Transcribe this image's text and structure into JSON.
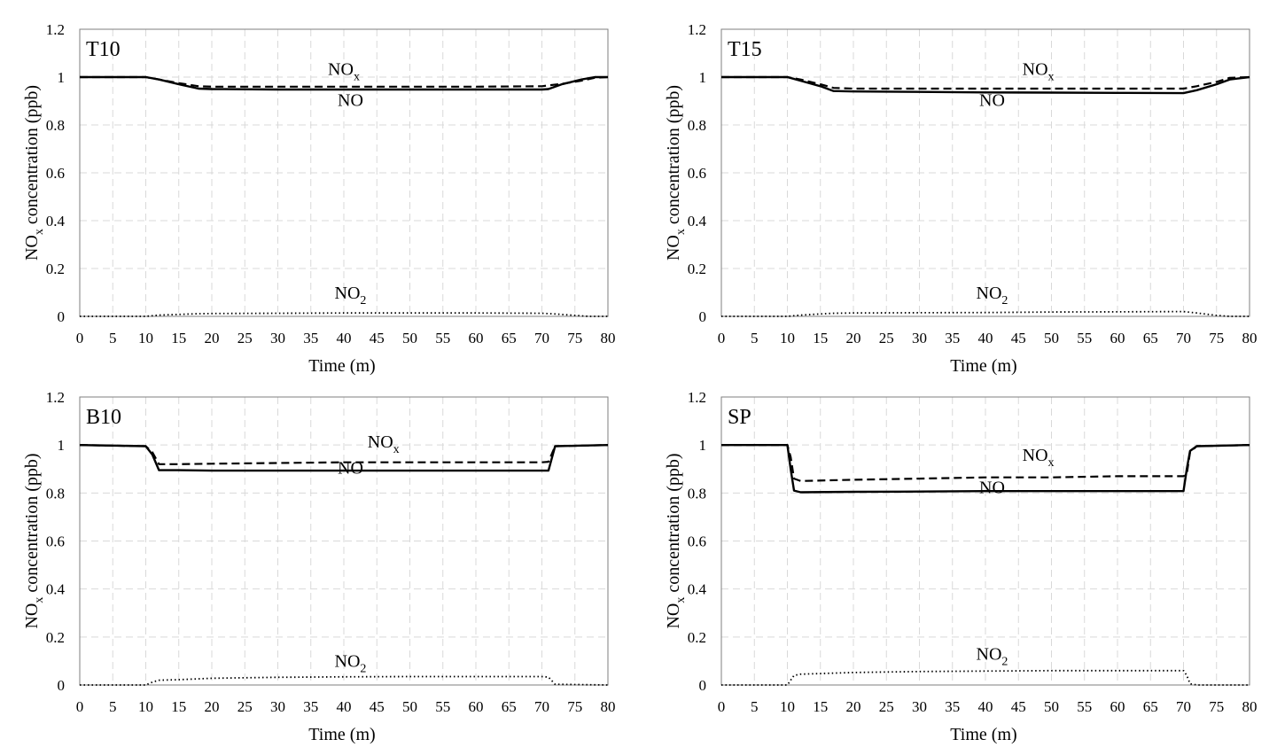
{
  "chart_data": [
    {
      "type": "line",
      "title": "T10",
      "xlabel": "Time (m)",
      "ylabel": "NOx concentration (ppb)",
      "ylabel_main": "NO",
      "ylabel_sub": "x",
      "ylabel_rest": " concentration (ppb)",
      "xlim": [
        0,
        80
      ],
      "ylim": [
        0,
        1.2
      ],
      "xticks": [
        "0",
        "5",
        "10",
        "15",
        "20",
        "25",
        "30",
        "35",
        "40",
        "45",
        "50",
        "55",
        "60",
        "65",
        "70",
        "75",
        "80"
      ],
      "yticks": [
        "0",
        "0.2",
        "0.4",
        "0.6",
        "0.8",
        "1",
        "1.2"
      ],
      "grid": true,
      "series": [
        {
          "name": "NOx",
          "style": "dashed",
          "label_main": "NO",
          "label_sub": "x",
          "label_pos": [
            40,
            1.01
          ],
          "x": [
            0,
            10,
            12,
            15,
            18,
            20,
            30,
            40,
            50,
            60,
            70,
            73,
            76,
            78,
            80
          ],
          "y": [
            1.0,
            1.0,
            0.99,
            0.975,
            0.962,
            0.96,
            0.96,
            0.96,
            0.96,
            0.96,
            0.962,
            0.972,
            0.985,
            0.997,
            1.0
          ]
        },
        {
          "name": "NO",
          "style": "solid",
          "label_main": "NO",
          "label_sub": "",
          "label_pos": [
            41,
            0.88
          ],
          "x": [
            0,
            10,
            12,
            15,
            18,
            20,
            30,
            40,
            50,
            60,
            70,
            71,
            73,
            76,
            78,
            80
          ],
          "y": [
            1.0,
            1.0,
            0.99,
            0.97,
            0.952,
            0.95,
            0.948,
            0.948,
            0.948,
            0.948,
            0.948,
            0.95,
            0.97,
            0.99,
            1.0,
            1.0
          ]
        },
        {
          "name": "NO2",
          "style": "dotted",
          "label_main": "NO",
          "label_sub": "2",
          "label_pos": [
            41,
            0.075
          ],
          "x": [
            0,
            10,
            12,
            15,
            18,
            20,
            30,
            40,
            50,
            60,
            70,
            72,
            75,
            77,
            80
          ],
          "y": [
            0,
            0,
            0.005,
            0.008,
            0.011,
            0.012,
            0.013,
            0.014,
            0.014,
            0.014,
            0.013,
            0.01,
            0.004,
            0,
            0
          ]
        }
      ]
    },
    {
      "type": "line",
      "title": "T15",
      "xlabel": "Time (m)",
      "ylabel": "NOx concentration (ppb)",
      "ylabel_main": "NO",
      "ylabel_sub": "x",
      "ylabel_rest": " concentration (ppb)",
      "xlim": [
        0,
        80
      ],
      "ylim": [
        0,
        1.2
      ],
      "xticks": [
        "0",
        "5",
        "10",
        "15",
        "20",
        "25",
        "30",
        "35",
        "40",
        "45",
        "50",
        "55",
        "60",
        "65",
        "70",
        "75",
        "80"
      ],
      "yticks": [
        "0",
        "0.2",
        "0.4",
        "0.6",
        "0.8",
        "1",
        "1.2"
      ],
      "grid": true,
      "series": [
        {
          "name": "NOx",
          "style": "dashed",
          "label_main": "NO",
          "label_sub": "x",
          "label_pos": [
            48,
            1.01
          ],
          "x": [
            0,
            10,
            12,
            15,
            17,
            20,
            30,
            40,
            50,
            60,
            70,
            72,
            75,
            77,
            80
          ],
          "y": [
            1.0,
            1.0,
            0.99,
            0.97,
            0.955,
            0.952,
            0.952,
            0.952,
            0.952,
            0.952,
            0.952,
            0.962,
            0.98,
            0.997,
            1.0
          ]
        },
        {
          "name": "NO",
          "style": "solid",
          "label_main": "NO",
          "label_sub": "",
          "label_pos": [
            41,
            0.88
          ],
          "x": [
            0,
            10,
            12,
            15,
            17,
            20,
            30,
            40,
            50,
            60,
            70,
            72,
            75,
            77,
            80
          ],
          "y": [
            1.0,
            1.0,
            0.985,
            0.962,
            0.942,
            0.94,
            0.938,
            0.936,
            0.935,
            0.934,
            0.933,
            0.945,
            0.97,
            0.99,
            1.0
          ]
        },
        {
          "name": "NO2",
          "style": "dotted",
          "label_main": "NO",
          "label_sub": "2",
          "label_pos": [
            41,
            0.075
          ],
          "x": [
            0,
            10,
            12,
            15,
            17,
            20,
            30,
            40,
            50,
            60,
            70,
            72,
            75,
            77,
            80
          ],
          "y": [
            0,
            0,
            0.005,
            0.01,
            0.013,
            0.014,
            0.015,
            0.016,
            0.018,
            0.019,
            0.02,
            0.014,
            0.004,
            0,
            0
          ]
        }
      ]
    },
    {
      "type": "line",
      "title": "B10",
      "xlabel": "Time (m)",
      "ylabel": "NOx concentration (ppb)",
      "ylabel_main": "NO",
      "ylabel_sub": "x",
      "ylabel_rest": " concentration (ppb)",
      "xlim": [
        0,
        80
      ],
      "ylim": [
        0,
        1.2
      ],
      "xticks": [
        "0",
        "5",
        "10",
        "15",
        "20",
        "25",
        "30",
        "35",
        "40",
        "45",
        "50",
        "55",
        "60",
        "65",
        "70",
        "75",
        "80"
      ],
      "yticks": [
        "0",
        "0.2",
        "0.4",
        "0.6",
        "0.8",
        "1",
        "1.2"
      ],
      "grid": true,
      "series": [
        {
          "name": "NOx",
          "style": "dashed",
          "label_main": "NO",
          "label_sub": "x",
          "label_pos": [
            46,
            0.99
          ],
          "x": [
            0,
            10,
            11,
            12,
            15,
            20,
            30,
            40,
            50,
            60,
            70,
            71,
            72,
            80
          ],
          "y": [
            1.0,
            0.995,
            0.97,
            0.92,
            0.92,
            0.922,
            0.925,
            0.928,
            0.928,
            0.928,
            0.928,
            0.93,
            0.995,
            1.0
          ]
        },
        {
          "name": "NO",
          "style": "solid",
          "label_main": "NO",
          "label_sub": "",
          "label_pos": [
            41,
            0.88
          ],
          "x": [
            0,
            10,
            11,
            12,
            15,
            20,
            30,
            40,
            50,
            60,
            70,
            71,
            72,
            80
          ],
          "y": [
            1.0,
            0.995,
            0.96,
            0.895,
            0.895,
            0.893,
            0.893,
            0.893,
            0.893,
            0.893,
            0.893,
            0.893,
            0.995,
            1.0
          ]
        },
        {
          "name": "NO2",
          "style": "dotted",
          "label_main": "NO",
          "label_sub": "2",
          "label_pos": [
            41,
            0.075
          ],
          "x": [
            0,
            10,
            11,
            12,
            15,
            20,
            30,
            40,
            50,
            60,
            70,
            71,
            72,
            80
          ],
          "y": [
            0,
            0,
            0.012,
            0.02,
            0.022,
            0.028,
            0.032,
            0.034,
            0.035,
            0.035,
            0.035,
            0.033,
            0.003,
            0
          ]
        }
      ]
    },
    {
      "type": "line",
      "title": "SP",
      "xlabel": "Time (m)",
      "ylabel": "NOx concentration (ppb)",
      "ylabel_main": "NO",
      "ylabel_sub": "x",
      "ylabel_rest": " concentration (ppb)",
      "xlim": [
        0,
        80
      ],
      "ylim": [
        0,
        1.2
      ],
      "xticks": [
        "0",
        "5",
        "10",
        "15",
        "20",
        "25",
        "30",
        "35",
        "40",
        "45",
        "50",
        "55",
        "60",
        "65",
        "70",
        "75",
        "80"
      ],
      "yticks": [
        "0",
        "0.2",
        "0.4",
        "0.6",
        "0.8",
        "1",
        "1.2"
      ],
      "grid": true,
      "series": [
        {
          "name": "NOx",
          "style": "dashed",
          "label_main": "NO",
          "label_sub": "x",
          "label_pos": [
            48,
            0.935
          ],
          "x": [
            0,
            10,
            10.5,
            11,
            12,
            20,
            30,
            40,
            50,
            60,
            70,
            70.5,
            71,
            72,
            80
          ],
          "y": [
            1.0,
            1.0,
            0.95,
            0.86,
            0.85,
            0.855,
            0.86,
            0.865,
            0.865,
            0.87,
            0.87,
            0.88,
            0.97,
            0.995,
            1.0
          ]
        },
        {
          "name": "NO",
          "style": "solid",
          "label_main": "NO",
          "label_sub": "",
          "label_pos": [
            41,
            0.8
          ],
          "x": [
            0,
            10,
            10.5,
            11,
            12,
            20,
            30,
            40,
            50,
            60,
            70,
            70.5,
            71,
            72,
            80
          ],
          "y": [
            1.0,
            1.0,
            0.9,
            0.81,
            0.803,
            0.805,
            0.806,
            0.808,
            0.808,
            0.808,
            0.808,
            0.9,
            0.975,
            0.995,
            1.0
          ]
        },
        {
          "name": "NO2",
          "style": "dotted",
          "label_main": "NO",
          "label_sub": "2",
          "label_pos": [
            41,
            0.105
          ],
          "x": [
            0,
            10,
            10.5,
            11,
            12,
            20,
            30,
            40,
            50,
            60,
            70,
            70.5,
            71,
            72,
            80
          ],
          "y": [
            0,
            0,
            0.02,
            0.04,
            0.045,
            0.052,
            0.056,
            0.058,
            0.06,
            0.06,
            0.06,
            0.04,
            0.005,
            0,
            0
          ]
        }
      ]
    }
  ]
}
